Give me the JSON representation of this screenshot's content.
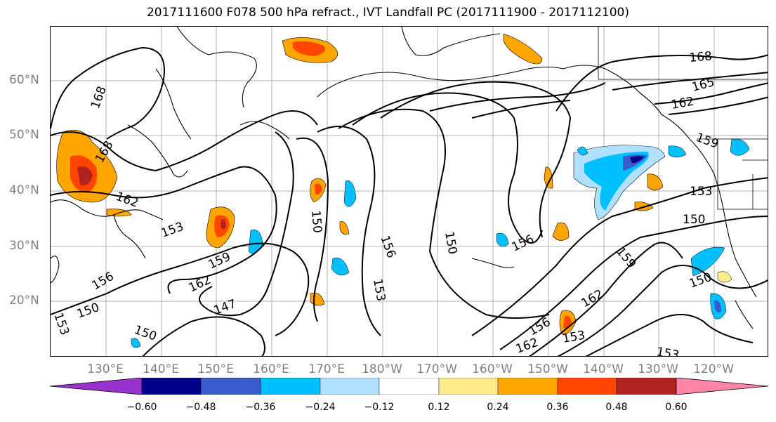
{
  "title": "2017111600 F078 500 hPa refract., IVT Landfall PC (2017111900 - 2017112100)",
  "lat_labels": [
    "60°N",
    "50°N",
    "40°N",
    "30°N",
    "20°N"
  ],
  "lon_labels": [
    "130°E",
    "140°E",
    "150°E",
    "160°E",
    "170°E",
    "180°W",
    "170°W",
    "160°W",
    "150°W",
    "140°W",
    "130°W",
    "120°W"
  ],
  "contour_labels": [
    "168",
    "165",
    "162",
    "159",
    "156",
    "153",
    "150",
    "147"
  ],
  "colorbar": {
    "ticks": [
      "−0.60",
      "−0.48",
      "−0.36",
      "−0.24",
      "−0.12",
      "0.12",
      "0.24",
      "0.36",
      "0.48",
      "0.60"
    ],
    "colors": [
      "#9932CC",
      "#00008B",
      "#3A5BCB",
      "#00BFFF",
      "#B0E2FF",
      "#FFFFFF",
      "#FFEC8B",
      "#FFA500",
      "#FF4500",
      "#B22222",
      "#FF85A6"
    ]
  }
}
